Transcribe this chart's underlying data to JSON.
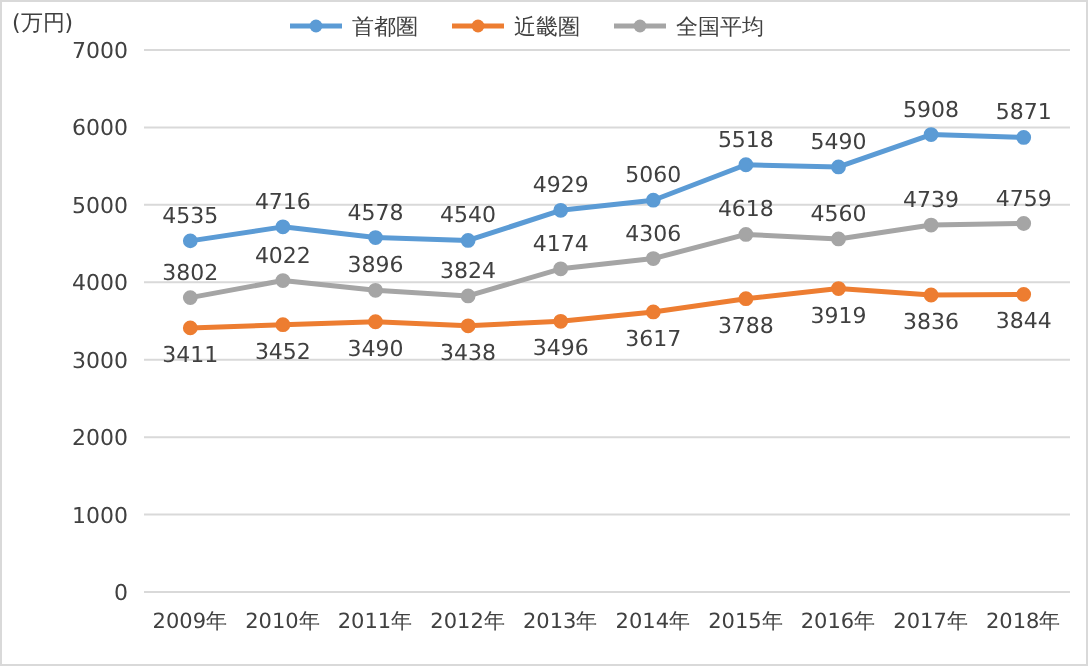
{
  "chart_data": {
    "type": "line",
    "ylabel": "(万円)",
    "categories": [
      "2009年",
      "2010年",
      "2011年",
      "2012年",
      "2013年",
      "2014年",
      "2015年",
      "2016年",
      "2017年",
      "2018年"
    ],
    "series": [
      {
        "name": "首都圏",
        "color": "#5b9bd5",
        "values": [
          4535,
          4716,
          4578,
          4540,
          4929,
          5060,
          5518,
          5490,
          5908,
          5871
        ]
      },
      {
        "name": "近畿圏",
        "color": "#ed7d31",
        "values": [
          3411,
          3452,
          3490,
          3438,
          3496,
          3617,
          3788,
          3919,
          3836,
          3844
        ]
      },
      {
        "name": "全国平均",
        "color": "#a5a5a5",
        "values": [
          3802,
          4022,
          3896,
          3824,
          4174,
          4306,
          4618,
          4560,
          4739,
          4759
        ]
      }
    ],
    "ylim": [
      0,
      7000
    ],
    "yticks": [
      0,
      1000,
      2000,
      3000,
      4000,
      5000,
      6000,
      7000
    ],
    "grid": "y",
    "legend": "top",
    "marker": "circle",
    "line_style": "solid",
    "data_labels": true
  }
}
